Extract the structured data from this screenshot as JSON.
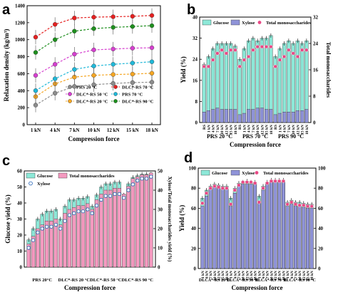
{
  "chart_data": [
    {
      "panel": "a",
      "type": "line",
      "xlabel": "Compression force",
      "ylabel": "Relaxation density (kg/m³)",
      "categories": [
        "1 kN",
        "4 kN",
        "7 kN",
        "10 kN",
        "12 kN",
        "15 kN",
        "18 kN"
      ],
      "ylim": [
        0,
        1400
      ],
      "yticks": [
        "0",
        "200",
        "400",
        "600",
        "800",
        "1000",
        "1200",
        "1400"
      ],
      "legend": "bottom-right",
      "colors": [
        "#8c8c8c",
        "#f5a623",
        "#20b8d8",
        "#d53fcf",
        "#1e8f1e",
        "#e52020"
      ],
      "series": [
        {
          "name": "PRS 20 °C",
          "values": [
            230,
            370,
            450,
            470,
            485,
            495,
            500
          ]
        },
        {
          "name": "DLC*-RS 20 °C",
          "values": [
            330,
            480,
            560,
            580,
            590,
            595,
            605
          ]
        },
        {
          "name": "PRS 70 °C",
          "values": [
            400,
            540,
            650,
            690,
            710,
            725,
            740
          ]
        },
        {
          "name": "DLC*-RS 50 °C",
          "values": [
            580,
            710,
            830,
            880,
            890,
            900,
            905
          ]
        },
        {
          "name": "DLC*-RS 90 °C",
          "values": [
            850,
            1000,
            1100,
            1130,
            1145,
            1155,
            1165
          ]
        },
        {
          "name": "DLC*-RS 70 °C",
          "values": [
            1030,
            1180,
            1255,
            1265,
            1270,
            1275,
            1285
          ]
        }
      ]
    },
    {
      "panel": "b",
      "type": "bar",
      "xlabel": "Compression force",
      "ylabel": "Yield (%)",
      "ylabel_right": "Total monosaccharides",
      "ylim": [
        0,
        40
      ],
      "ylim_right": [
        0,
        32
      ],
      "yticks": [
        "0",
        "8",
        "16",
        "24",
        "32",
        "40"
      ],
      "yticks_right": [
        "0",
        "8",
        "16",
        "24",
        "32"
      ],
      "categories": [
        "RS",
        "1 kN",
        "4 kN",
        "7 kN",
        "10 kN",
        "12 kN",
        "15 kN",
        "18 kN"
      ],
      "groups": [
        "PRS 20 °C",
        "PRS 70 °C",
        "PRS 90 °C"
      ],
      "group_colors": [
        "#000000",
        "#1a9b1a",
        "#ef8f10"
      ],
      "legend": [
        "Glucose",
        "Xylose",
        "Total monosaccharides"
      ],
      "series_colors": [
        "#8de8d8",
        "#8f93d8",
        "#e84a86"
      ],
      "glucose": [
        [
          22,
          25,
          28,
          30,
          30,
          30,
          30,
          29
        ],
        [
          24,
          28,
          31,
          32,
          31,
          32,
          32,
          33
        ],
        [
          25,
          28,
          30,
          31,
          30,
          31,
          30,
          31
        ]
      ],
      "xylose": [
        [
          4,
          4.5,
          5,
          5.5,
          5,
          5,
          5,
          5
        ],
        [
          3,
          3.5,
          5,
          5,
          5.5,
          5.5,
          5,
          5
        ],
        [
          3,
          3.5,
          4,
          4,
          4,
          4.5,
          4.5,
          5
        ]
      ],
      "total": [
        [
          17,
          17,
          19,
          21,
          22,
          21,
          22,
          22
        ],
        [
          17,
          19,
          20,
          22,
          23,
          23,
          23,
          23
        ],
        [
          17,
          19,
          20,
          22,
          21,
          20,
          22,
          22
        ]
      ]
    },
    {
      "panel": "c",
      "type": "bar",
      "xlabel": "Compression force",
      "ylabel": "Glucose yield (%)",
      "ylabel_right": "Xylose/Total monosaccharides yield (%)",
      "ylim": [
        0,
        60
      ],
      "ylim_right": [
        0,
        50
      ],
      "yticks": [
        "0",
        "10",
        "20",
        "30",
        "40",
        "50",
        "60"
      ],
      "yticks_right": [
        "0",
        "10",
        "20",
        "30",
        "40",
        "50"
      ],
      "groups": [
        "PRS 20°C",
        "DLC*-RS 20 °C",
        "DLC*-RS 50 °C",
        "DLC*-RS 90 °C"
      ],
      "group_colors": [
        "#000000",
        "#e0359a",
        "#1a9b1a",
        "#2f6fd0"
      ],
      "legend": [
        "Glucose",
        "Total monosaccharides",
        "Xylose"
      ],
      "series_colors": [
        "#8de8d8",
        "#f49ac0",
        "#1f5fb4"
      ],
      "glucose": [
        [
          17,
          24,
          30,
          33,
          35,
          35,
          36
        ],
        [
          30,
          38,
          42,
          42,
          43,
          43,
          44
        ],
        [
          38,
          45,
          50,
          52,
          52,
          53,
          53
        ],
        [
          45,
          52,
          56,
          57,
          58,
          58,
          58
        ]
      ],
      "total": [
        [
          12,
          16,
          20,
          22,
          24,
          24,
          25
        ],
        [
          22,
          28,
          30,
          31,
          32,
          32,
          33
        ],
        [
          30,
          35,
          38,
          40,
          40,
          41,
          41
        ],
        [
          38,
          42,
          46,
          47,
          48,
          48,
          49
        ]
      ],
      "xylose": [
        [
          10,
          14,
          18,
          20,
          21,
          21,
          22
        ],
        [
          20,
          24,
          27,
          28,
          29,
          29,
          30
        ],
        [
          28,
          32,
          35,
          37,
          37,
          38,
          38
        ],
        [
          36,
          40,
          43,
          45,
          46,
          46,
          47
        ]
      ]
    },
    {
      "panel": "d",
      "type": "bar",
      "xlabel": "Compression force",
      "ylabel": "Yield (%)",
      "ylim": [
        0,
        100
      ],
      "ylim_right": [
        0,
        100
      ],
      "yticks": [
        "0",
        "20",
        "40",
        "60",
        "80",
        "100"
      ],
      "yticks_right": [
        "0",
        "20",
        "40",
        "60",
        "80",
        "100"
      ],
      "categories": [
        "1 kN",
        "4 kN",
        "7 kN",
        "10 kN",
        "12 kN",
        "15 kN",
        "18 kN"
      ],
      "groups": [
        "DLCA*-RS 20°C",
        "DLCA*-RS 50 °C",
        "DLCA*-RS 70 °C",
        "DLCA*-RS 90 °C"
      ],
      "group_colors": [
        "#000000",
        "#e0359a",
        "#1a9b1a",
        "#2f6fd0"
      ],
      "legend": [
        "Glucose",
        "Xylose",
        "Total monosaccharides"
      ],
      "series_colors": [
        "#8de8d8",
        "#8f93d8",
        "#e84a86"
      ],
      "glucose": [
        [
          70,
          78,
          82,
          84,
          83,
          82,
          82
        ],
        [
          70,
          80,
          85,
          86,
          87,
          86,
          86
        ],
        [
          72,
          82,
          86,
          88,
          88,
          88,
          88
        ],
        [
          66,
          68,
          66,
          66,
          65,
          64,
          64
        ]
      ],
      "xylose": [
        [
          62,
          72,
          80,
          82,
          81,
          80,
          80
        ],
        [
          62,
          75,
          82,
          84,
          84,
          84,
          84
        ],
        [
          65,
          78,
          84,
          86,
          86,
          86,
          86
        ],
        [
          62,
          64,
          62,
          62,
          61,
          60,
          60
        ]
      ],
      "total": [
        [
          65,
          75,
          80,
          82,
          81,
          80,
          80
        ],
        [
          64,
          78,
          83,
          86,
          86,
          86,
          85
        ],
        [
          66,
          80,
          85,
          87,
          87,
          87,
          87
        ],
        [
          64,
          66,
          64,
          63,
          63,
          62,
          62
        ]
      ]
    }
  ]
}
